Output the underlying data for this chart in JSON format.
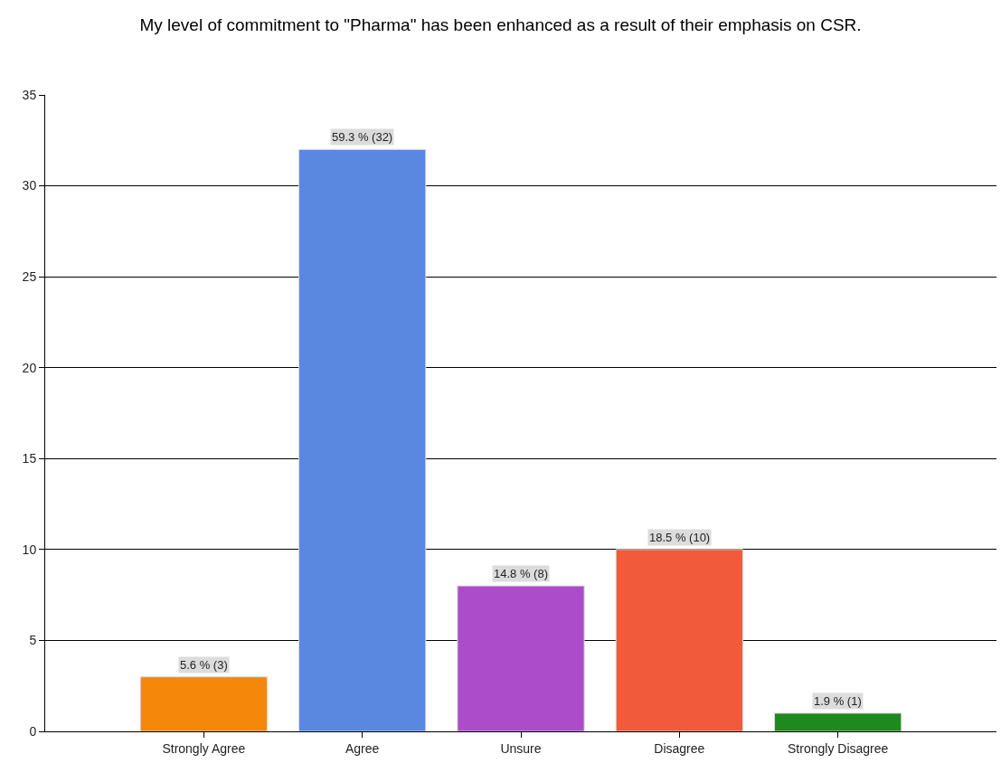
{
  "chart_data": {
    "type": "bar",
    "title": "My level of commitment to \"Pharma\" has been enhanced as a result of their emphasis on CSR.",
    "categories": [
      "Strongly Agree",
      "Agree",
      "Unsure",
      "Disagree",
      "Strongly Disagree"
    ],
    "values": [
      3,
      32,
      8,
      10,
      1
    ],
    "colors": [
      "#f5880a",
      "#5a88e0",
      "#ac4ccb",
      "#f25a3c",
      "#1e8a1e"
    ],
    "value_labels": [
      "5.6 % (3)",
      "59.3 % (32)",
      "14.8 % (8)",
      "18.5 % (10)",
      "1.9 % (1)"
    ],
    "ylim": [
      0,
      35
    ],
    "yticks": [
      0,
      5,
      10,
      15,
      20,
      25,
      30,
      35
    ],
    "grid": "y",
    "legend": false
  }
}
